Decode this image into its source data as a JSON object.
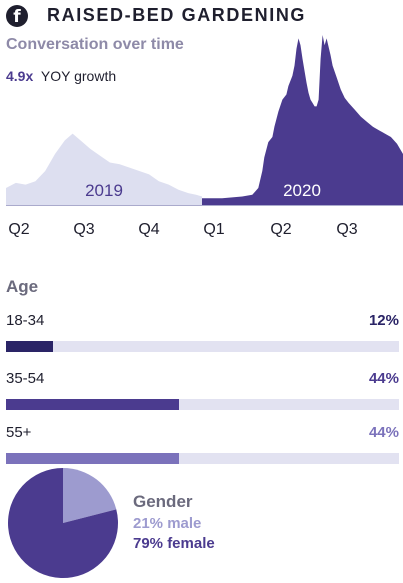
{
  "header": {
    "icon": "facebook-icon",
    "icon_glyph": "f",
    "title": "RAISED-BED GARDENING"
  },
  "subtitle": "Conversation over time",
  "growth": {
    "value": "4.9x",
    "label": "YOY growth"
  },
  "colors": {
    "dark": "#1f1f2e",
    "accent": "#4b3b8f",
    "accent_mid": "#6b63b5",
    "accent_light": "#9d9bcf",
    "area_2019": "#dddff0",
    "track": "#e2e2f1",
    "muted": "#6b6a7d"
  },
  "chart_data": [
    {
      "type": "area",
      "xlabel": "",
      "ylabel": "",
      "x_ticks": [
        "Q2",
        "Q3",
        "Q4",
        "Q1",
        "Q2",
        "Q3"
      ],
      "series": [
        {
          "name": "2019",
          "points": [
            [
              0,
              0.1
            ],
            [
              0.05,
              0.13
            ],
            [
              0.1,
              0.12
            ],
            [
              0.15,
              0.14
            ],
            [
              0.2,
              0.2
            ],
            [
              0.25,
              0.3
            ],
            [
              0.3,
              0.38
            ],
            [
              0.34,
              0.42
            ],
            [
              0.38,
              0.38
            ],
            [
              0.43,
              0.33
            ],
            [
              0.48,
              0.29
            ],
            [
              0.53,
              0.25
            ],
            [
              0.58,
              0.24
            ],
            [
              0.63,
              0.22
            ],
            [
              0.68,
              0.2
            ],
            [
              0.73,
              0.18
            ],
            [
              0.78,
              0.14
            ],
            [
              0.83,
              0.12
            ],
            [
              0.88,
              0.09
            ],
            [
              0.93,
              0.07
            ],
            [
              0.97,
              0.06
            ],
            [
              1.0,
              0.05
            ]
          ]
        },
        {
          "name": "2020",
          "points": [
            [
              0,
              0.04
            ],
            [
              0.1,
              0.04
            ],
            [
              0.2,
              0.05
            ],
            [
              0.25,
              0.06
            ],
            [
              0.28,
              0.1
            ],
            [
              0.3,
              0.2
            ],
            [
              0.31,
              0.28
            ],
            [
              0.33,
              0.37
            ],
            [
              0.35,
              0.4
            ],
            [
              0.36,
              0.46
            ],
            [
              0.38,
              0.55
            ],
            [
              0.4,
              0.62
            ],
            [
              0.42,
              0.65
            ],
            [
              0.43,
              0.7
            ],
            [
              0.45,
              0.76
            ],
            [
              0.46,
              0.82
            ],
            [
              0.47,
              0.92
            ],
            [
              0.48,
              0.98
            ],
            [
              0.49,
              0.94
            ],
            [
              0.5,
              0.86
            ],
            [
              0.51,
              0.79
            ],
            [
              0.52,
              0.72
            ],
            [
              0.53,
              0.66
            ],
            [
              0.54,
              0.62
            ],
            [
              0.55,
              0.6
            ],
            [
              0.56,
              0.58
            ],
            [
              0.57,
              0.58
            ],
            [
              0.58,
              0.62
            ],
            [
              0.59,
              0.86
            ],
            [
              0.6,
              1.0
            ],
            [
              0.61,
              0.94
            ],
            [
              0.62,
              0.98
            ],
            [
              0.63,
              0.93
            ],
            [
              0.64,
              0.88
            ],
            [
              0.65,
              0.82
            ],
            [
              0.67,
              0.75
            ],
            [
              0.69,
              0.68
            ],
            [
              0.71,
              0.63
            ],
            [
              0.73,
              0.6
            ],
            [
              0.76,
              0.56
            ],
            [
              0.79,
              0.52
            ],
            [
              0.82,
              0.49
            ],
            [
              0.85,
              0.46
            ],
            [
              0.88,
              0.44
            ],
            [
              0.91,
              0.42
            ],
            [
              0.94,
              0.4
            ],
            [
              0.97,
              0.36
            ],
            [
              1.0,
              0.3
            ]
          ]
        }
      ]
    },
    {
      "type": "bar",
      "title": "Age",
      "categories": [
        "18-34",
        "35-54",
        "55+"
      ],
      "values": [
        12,
        44,
        44
      ],
      "labels": [
        "12%",
        "44%",
        "44%"
      ],
      "colors": [
        "#2a2466",
        "#4b3b8f",
        "#7b72bb"
      ],
      "label_colors": [
        "#2a2466",
        "#4b3b8f",
        "#7b72bb"
      ],
      "xlim": [
        0,
        100
      ]
    },
    {
      "type": "pie",
      "title": "Gender",
      "slices": [
        {
          "name": "male",
          "value": 21,
          "label": "21% male",
          "color": "#9d9bcf"
        },
        {
          "name": "female",
          "value": 79,
          "label": "79% female",
          "color": "#4b3b8f"
        }
      ]
    }
  ]
}
